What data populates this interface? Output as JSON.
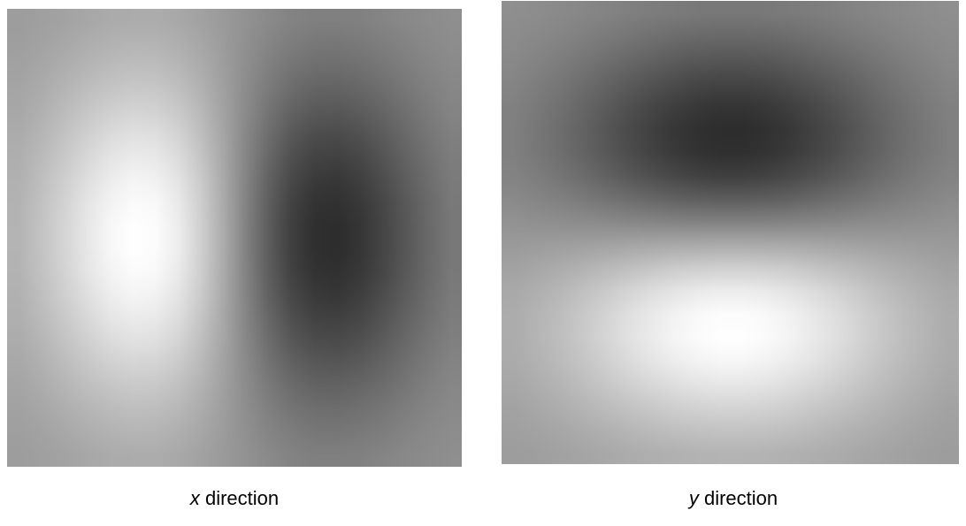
{
  "panels": [
    {
      "id": "x",
      "caption_var": "x",
      "caption_text": " direction",
      "gradient_axis": "horizontal",
      "bright_side": "left"
    },
    {
      "id": "y",
      "caption_var": "y",
      "caption_text": " direction",
      "gradient_axis": "vertical",
      "bright_side": "bottom"
    }
  ]
}
